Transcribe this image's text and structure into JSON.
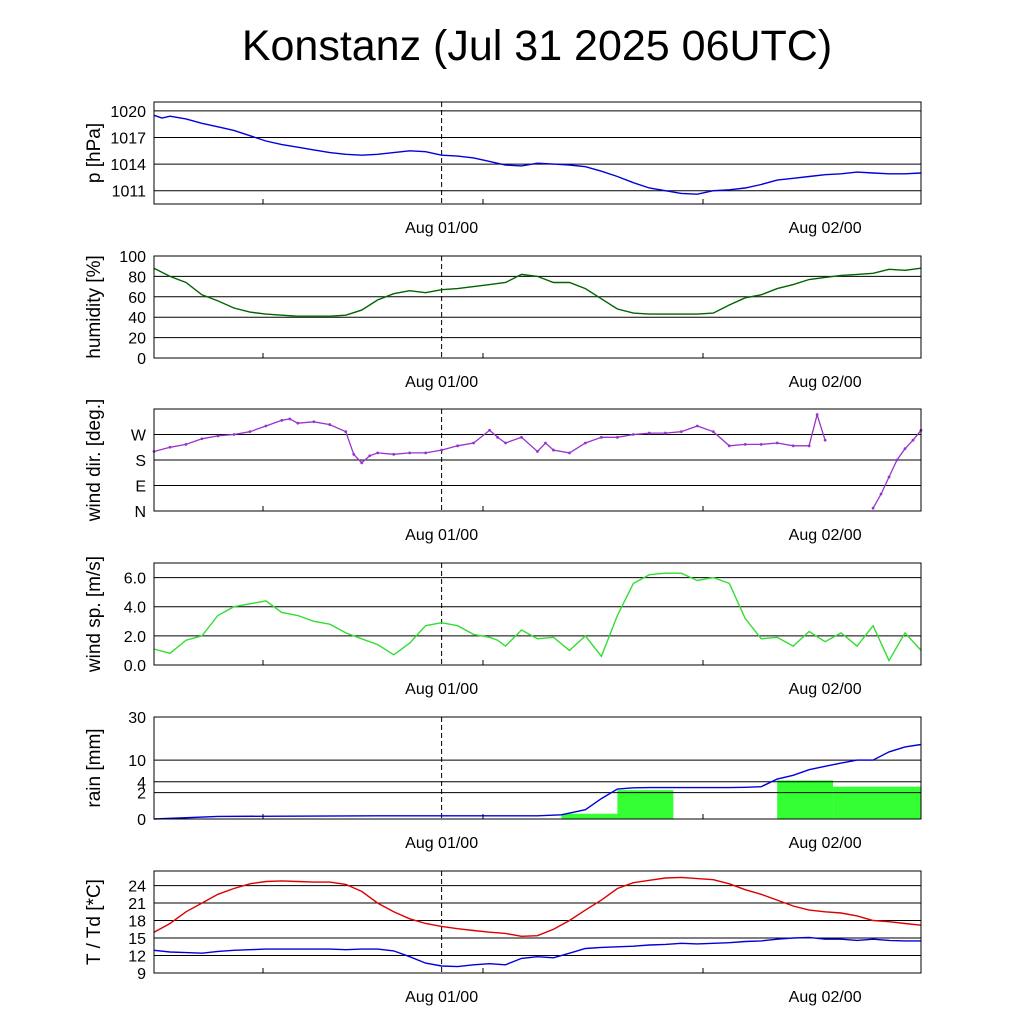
{
  "title": "Konstanz (Jul 31 2025 06UTC)",
  "chart_data": [
    {
      "type": "line",
      "ylabel": "p [hPa]",
      "xticks": [
        "Aug 01/00",
        "Aug 02/00"
      ],
      "x_range_hours": [
        6,
        54
      ],
      "ylim": [
        1009.5,
        1021
      ],
      "yticks": [
        1011,
        1014,
        1017,
        1020
      ],
      "grid": true,
      "vline_x": "Aug 01/00",
      "series": [
        {
          "color": "#0000dd",
          "x": [
            6,
            6.5,
            7,
            8,
            9,
            10,
            11,
            12,
            13,
            14,
            15,
            16,
            17,
            18,
            19,
            20,
            21,
            22,
            23,
            24,
            25,
            26,
            27,
            28,
            29,
            30,
            31,
            32,
            33,
            34,
            35,
            36,
            37,
            38,
            39,
            40,
            41,
            42,
            43,
            44,
            45,
            46,
            47,
            48,
            49,
            50,
            51,
            52,
            53,
            54
          ],
          "y": [
            1019.5,
            1019.2,
            1019.4,
            1019.1,
            1018.6,
            1018.2,
            1017.8,
            1017.2,
            1016.6,
            1016.2,
            1015.9,
            1015.6,
            1015.3,
            1015.1,
            1015.0,
            1015.1,
            1015.3,
            1015.5,
            1015.4,
            1015.0,
            1014.9,
            1014.7,
            1014.3,
            1013.9,
            1013.8,
            1014.1,
            1014.0,
            1013.9,
            1013.7,
            1013.2,
            1012.6,
            1011.9,
            1011.3,
            1011.0,
            1010.7,
            1010.6,
            1011.0,
            1011.1,
            1011.3,
            1011.7,
            1012.2,
            1012.4,
            1012.6,
            1012.8,
            1012.9,
            1013.1,
            1013.0,
            1012.9,
            1012.9,
            1013.0
          ]
        }
      ]
    },
    {
      "type": "line",
      "ylabel": "humidity [%]",
      "xticks": [
        "Aug 01/00",
        "Aug 02/00"
      ],
      "x_range_hours": [
        6,
        54
      ],
      "ylim": [
        0,
        100
      ],
      "yticks": [
        0,
        20,
        40,
        60,
        80,
        100
      ],
      "grid": true,
      "vline_x": "Aug 01/00",
      "series": [
        {
          "color": "#006400",
          "x": [
            6,
            7,
            8,
            9,
            10,
            11,
            12,
            13,
            14,
            15,
            16,
            17,
            18,
            19,
            20,
            21,
            22,
            23,
            24,
            25,
            26,
            27,
            28,
            29,
            30,
            31,
            32,
            33,
            34,
            35,
            36,
            37,
            38,
            39,
            40,
            41,
            42,
            43,
            44,
            45,
            46,
            47,
            48,
            49,
            50,
            51,
            52,
            53,
            54
          ],
          "y": [
            88,
            80,
            74,
            62,
            56,
            49,
            45,
            43,
            42,
            41,
            41,
            41,
            42,
            47,
            57,
            63,
            66,
            64,
            67,
            68,
            70,
            72,
            74,
            82,
            80,
            74,
            74,
            68,
            58,
            48,
            44,
            43,
            43,
            43,
            43,
            44,
            52,
            59,
            62,
            68,
            72,
            77,
            79,
            81,
            82,
            83,
            87,
            86,
            88
          ]
        }
      ]
    },
    {
      "type": "scatter",
      "ylabel": "wind dir. [deg.]",
      "xticks": [
        "Aug 01/00",
        "Aug 02/00"
      ],
      "x_range_hours": [
        6,
        54
      ],
      "ylim": [
        0,
        360
      ],
      "yticks": [
        0,
        90,
        180,
        270
      ],
      "ytick_labels": [
        "N",
        "E",
        "S",
        "W"
      ],
      "grid": true,
      "vline_x": "Aug 01/00",
      "series": [
        {
          "color": "#9933cc",
          "x": [
            6,
            7,
            8,
            9,
            10,
            11,
            12,
            13,
            14,
            14.5,
            15,
            16,
            17,
            18,
            18.5,
            19,
            19.5,
            20,
            21,
            22,
            23,
            24,
            25,
            26,
            27,
            27.5,
            28,
            29,
            30,
            30.5,
            31,
            32,
            33,
            34,
            35,
            36,
            37,
            38,
            39,
            40,
            41,
            42,
            43,
            44,
            45,
            46,
            47,
            47.5,
            48
          ],
          "y": [
            210,
            225,
            235,
            255,
            265,
            270,
            280,
            300,
            320,
            325,
            310,
            315,
            305,
            280,
            200,
            170,
            195,
            205,
            200,
            205,
            205,
            215,
            230,
            240,
            285,
            260,
            240,
            260,
            210,
            240,
            215,
            205,
            240,
            260,
            260,
            270,
            275,
            275,
            280,
            300,
            280,
            230,
            235,
            235,
            240,
            230,
            230,
            340,
            250
          ]
        },
        {
          "color": "#9933cc",
          "x": [
            51.0,
            51.5,
            52,
            52.5,
            53,
            53.5,
            54
          ],
          "y": [
            10,
            60,
            120,
            180,
            220,
            250,
            285
          ]
        }
      ]
    },
    {
      "type": "line",
      "ylabel": "wind sp. [m/s]",
      "xticks": [
        "Aug 01/00",
        "Aug 02/00"
      ],
      "x_range_hours": [
        6,
        54
      ],
      "ylim": [
        0,
        7
      ],
      "yticks": [
        0.0,
        2.0,
        4.0,
        6.0
      ],
      "ytick_labels": [
        "0.0",
        "2.0",
        "4.0",
        "6.0"
      ],
      "grid": true,
      "vline_x": "Aug 01/00",
      "series": [
        {
          "color": "#33dd33",
          "x": [
            6,
            7,
            8,
            9,
            10,
            11,
            12,
            13,
            14,
            15,
            16,
            17,
            18,
            19,
            20,
            21,
            22,
            23,
            24,
            25,
            26,
            27,
            27.5,
            28,
            29,
            30,
            31,
            32,
            33,
            34,
            35,
            36,
            37,
            38,
            39,
            40,
            41,
            42,
            43,
            44,
            45,
            46,
            47,
            48,
            49,
            50,
            51,
            52,
            53,
            54
          ],
          "y": [
            1.1,
            0.8,
            1.7,
            2.0,
            3.4,
            4.0,
            4.2,
            4.4,
            3.6,
            3.4,
            3.0,
            2.8,
            2.2,
            1.8,
            1.4,
            0.7,
            1.5,
            2.7,
            2.9,
            2.7,
            2.1,
            1.9,
            1.7,
            1.3,
            2.4,
            1.8,
            1.9,
            1.0,
            2.0,
            0.6,
            3.4,
            5.6,
            6.2,
            6.3,
            6.3,
            5.8,
            6.0,
            5.6,
            3.2,
            1.8,
            1.9,
            1.3,
            2.3,
            1.6,
            2.2,
            1.3,
            2.7,
            0.3,
            2.2,
            1.0
          ]
        }
      ]
    },
    {
      "type": "bar+line",
      "ylabel": "rain [mm]",
      "xticks": [
        "Aug 01/00",
        "Aug 02/00"
      ],
      "x_range_hours": [
        6,
        54
      ],
      "yscale": "sqrt",
      "ylim": [
        0,
        30
      ],
      "yticks": [
        0,
        2,
        4,
        10,
        30
      ],
      "grid": true,
      "vline_x": "Aug 01/00",
      "bars": {
        "color": "#33ff33",
        "bins": [
          {
            "start": 31.5,
            "end": 35,
            "value": 0.08
          },
          {
            "start": 35,
            "end": 38.5,
            "value": 2.4
          },
          {
            "start": 45,
            "end": 48.5,
            "value": 4.3
          },
          {
            "start": 48.5,
            "end": 54,
            "value": 3.0
          }
        ]
      },
      "series": [
        {
          "name": "",
          "color": "#0000dd",
          "x": [
            6,
            10,
            20,
            30,
            31.5,
            33,
            34,
            35,
            36,
            37,
            38,
            39,
            40,
            41,
            42,
            43,
            44,
            45,
            46,
            47,
            48,
            49,
            50,
            51,
            52,
            53,
            54
          ],
          "y": [
            0,
            0.02,
            0.03,
            0.03,
            0.05,
            0.25,
            1.2,
            2.6,
            2.8,
            2.85,
            2.85,
            2.85,
            2.85,
            2.85,
            2.85,
            2.9,
            3.0,
            4.6,
            5.5,
            7.0,
            8.0,
            9.0,
            10.0,
            10.0,
            13.0,
            15.0,
            16.0
          ]
        }
      ]
    },
    {
      "type": "line",
      "ylabel": "T / Td [*C]",
      "xticks": [
        "Aug 01/00",
        "Aug 02/00"
      ],
      "x_range_hours": [
        6,
        54
      ],
      "ylim": [
        9,
        26.5
      ],
      "yticks": [
        9,
        12,
        15,
        18,
        21,
        24
      ],
      "grid": true,
      "vline_x": "Aug 01/00",
      "series": [
        {
          "name": "T",
          "color": "#dd0000",
          "x": [
            6,
            7,
            8,
            9,
            10,
            11,
            12,
            13,
            14,
            15,
            16,
            17,
            18,
            19,
            20,
            21,
            22,
            23,
            24,
            25,
            26,
            27,
            28,
            29,
            30,
            31,
            32,
            33,
            34,
            35,
            36,
            37,
            38,
            39,
            40,
            41,
            42,
            43,
            44,
            45,
            46,
            47,
            48,
            49,
            50,
            51,
            52,
            53,
            54
          ],
          "y": [
            16,
            17.5,
            19.5,
            21,
            22.5,
            23.5,
            24.3,
            24.7,
            24.8,
            24.7,
            24.6,
            24.6,
            24.2,
            23.0,
            21.0,
            19.5,
            18.3,
            17.5,
            17.0,
            16.6,
            16.3,
            16.0,
            15.8,
            15.3,
            15.4,
            16.5,
            18.0,
            19.8,
            21.5,
            23.5,
            24.5,
            24.9,
            25.3,
            25.4,
            25.2,
            25.0,
            24.3,
            23.3,
            22.5,
            21.5,
            20.5,
            19.8,
            19.5,
            19.3,
            18.8,
            18.0,
            17.8,
            17.5,
            17.2
          ]
        },
        {
          "name": "Td",
          "color": "#0000dd",
          "x": [
            6,
            7,
            8,
            9,
            10,
            11,
            12,
            13,
            14,
            15,
            16,
            17,
            18,
            19,
            20,
            21,
            22,
            23,
            24,
            25,
            26,
            27,
            28,
            29,
            30,
            31,
            32,
            33,
            34,
            35,
            36,
            37,
            38,
            39,
            40,
            41,
            42,
            43,
            44,
            45,
            46,
            47,
            48,
            49,
            50,
            51,
            52,
            53,
            54
          ],
          "y": [
            12.9,
            12.6,
            12.5,
            12.4,
            12.7,
            12.9,
            13.0,
            13.1,
            13.1,
            13.1,
            13.1,
            13.1,
            13.0,
            13.1,
            13.1,
            12.8,
            11.8,
            10.7,
            10.2,
            10.1,
            10.4,
            10.6,
            10.4,
            11.5,
            11.8,
            11.6,
            12.4,
            13.2,
            13.4,
            13.5,
            13.6,
            13.8,
            13.9,
            14.1,
            14.0,
            14.1,
            14.2,
            14.4,
            14.5,
            14.8,
            15.0,
            15.1,
            14.8,
            14.8,
            14.6,
            14.8,
            14.6,
            14.5,
            14.5
          ]
        }
      ]
    }
  ]
}
